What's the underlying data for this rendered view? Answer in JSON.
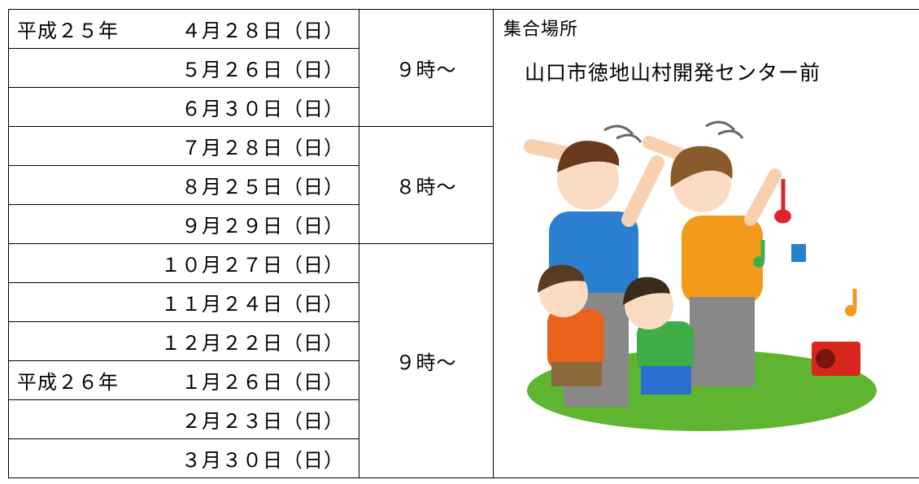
{
  "table": {
    "groups": [
      {
        "time": "９時～",
        "dates": [
          {
            "era": "平成２５年",
            "date": "４月２８日（日）"
          },
          {
            "date": "５月２６日（日）"
          },
          {
            "date": "６月３０日（日）"
          }
        ]
      },
      {
        "time": "８時～",
        "dates": [
          {
            "date": "７月２８日（日）"
          },
          {
            "date": "８月２５日（日）"
          },
          {
            "date": "９月２９日（日）"
          }
        ]
      },
      {
        "time": "９時～",
        "dates": [
          {
            "date": "１０月２７日（日）"
          },
          {
            "date": "１１月２４日（日）"
          },
          {
            "date": "１２月２２日（日）"
          },
          {
            "era": "平成２６年",
            "date": "１月２６日（日）"
          },
          {
            "date": "２月２３日（日）"
          },
          {
            "date": "３月３０日（日）"
          }
        ]
      }
    ],
    "place": {
      "heading": "集合場所",
      "name": "山口市徳地山村開発センター前"
    }
  }
}
